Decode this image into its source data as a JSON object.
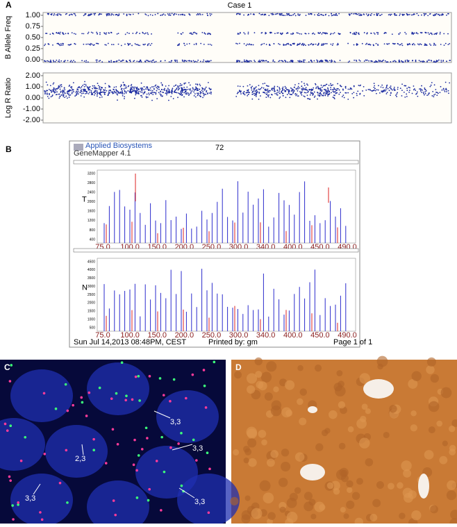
{
  "title": "Case 1",
  "panel_a": {
    "label": "A",
    "baf": {
      "ylabel": "B Allele Freq",
      "yticks": [
        "1.00",
        "0.75",
        "0.50",
        "0.25",
        "0.00"
      ]
    },
    "lrr": {
      "ylabel": "Log R Ratio",
      "yticks": [
        "2.00",
        "1.00",
        "0.00",
        "-1.00",
        "-2.00"
      ]
    }
  },
  "panel_b": {
    "label": "B",
    "logo": "Applied Biosystems",
    "software": "GeneMapper 4.1",
    "page_mark": "72",
    "traces": [
      {
        "label": "T",
        "yticks": [
          "3200",
          "2800",
          "2400",
          "2000",
          "1600",
          "1200",
          "800",
          "400"
        ]
      },
      {
        "label": "N",
        "yticks": [
          "4500",
          "4000",
          "3500",
          "3000",
          "2500",
          "2000",
          "1500",
          "1000",
          "500"
        ]
      }
    ],
    "xticks": [
      "75.0",
      "100.0",
      "150.0",
      "200.0",
      "250.0",
      "300.0",
      "340.0",
      "400.0",
      "450.0",
      "490.0"
    ],
    "footer_date": "Sun Jul 14,2013 08:48PM, CEST",
    "footer_printed": "Printed by: gm",
    "footer_page": "Page 1 of 1"
  },
  "panel_c": {
    "label": "C",
    "annotations": [
      "3,3",
      "3,3",
      "2,3",
      "3,3",
      "3,3"
    ]
  },
  "panel_d": {
    "label": "D"
  }
}
